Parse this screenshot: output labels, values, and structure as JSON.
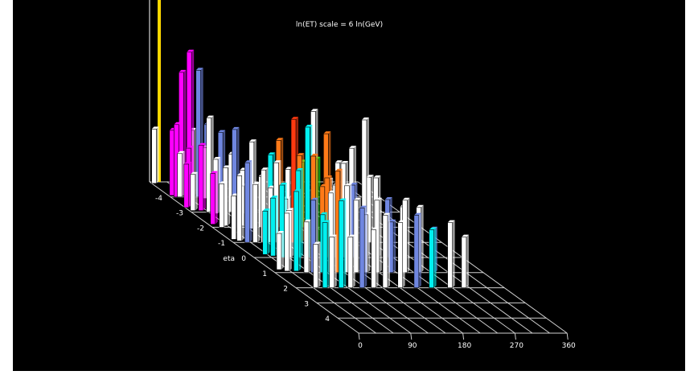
{
  "chart_data": {
    "type": "bar",
    "subtype": "3d-lego-histogram",
    "title": "ln(ET) scale = 6 ln(GeV)",
    "axes": {
      "eta": {
        "label": "eta",
        "ticks": [
          "-4",
          "-3",
          "-2",
          "-1",
          "0",
          "1",
          "2",
          "3",
          "4"
        ],
        "range": [
          -5,
          5
        ]
      },
      "phi": {
        "label": "",
        "ticks": [
          "0",
          "90",
          "180",
          "270",
          "360"
        ],
        "range": [
          0,
          360
        ]
      }
    },
    "grid": true,
    "series_colors": {
      "white": "#ffffff",
      "blue": "#6f86e0",
      "magenta": "#ff00ff",
      "cyan": "#00f0f0",
      "orange": "#ff7a18",
      "red": "#ff3a10",
      "green": "#22ee22"
    },
    "vertical_marker": {
      "color": "#ffd800",
      "eta": -5,
      "phi": 0,
      "height": 6
    },
    "towers": [
      {
        "eta": -4.9,
        "phi": 0,
        "h": 1.5,
        "color": "white"
      },
      {
        "eta": -4.1,
        "phi": 2,
        "h": 1.8,
        "color": "magenta"
      },
      {
        "eta": -4.0,
        "phi": 6,
        "h": 2.0,
        "color": "magenta"
      },
      {
        "eta": -4.0,
        "phi": 12,
        "h": 1.2,
        "color": "white"
      },
      {
        "eta": -4.1,
        "phi": 18,
        "h": 3.4,
        "color": "magenta"
      },
      {
        "eta": -4.0,
        "phi": 28,
        "h": 4.0,
        "color": "magenta"
      },
      {
        "eta": -4.1,
        "phi": 36,
        "h": 1.8,
        "color": "white"
      },
      {
        "eta": -4.0,
        "phi": 44,
        "h": 3.5,
        "color": "blue"
      },
      {
        "eta": -3.9,
        "phi": 52,
        "h": 1.4,
        "color": "white"
      },
      {
        "eta": -4.0,
        "phi": 58,
        "h": 2.0,
        "color": "blue"
      },
      {
        "eta": -3.3,
        "phi": -2,
        "h": 1.2,
        "color": "magenta"
      },
      {
        "eta": -3.4,
        "phi": 5,
        "h": 1.6,
        "color": "magenta"
      },
      {
        "eta": -3.1,
        "phi": 2,
        "h": 1.0,
        "color": "white"
      },
      {
        "eta": -3.1,
        "phi": 16,
        "h": 1.8,
        "color": "magenta"
      },
      {
        "eta": -3.0,
        "phi": 26,
        "h": 2.6,
        "color": "white"
      },
      {
        "eta": -2.9,
        "phi": 34,
        "h": 1.5,
        "color": "white"
      },
      {
        "eta": -3.0,
        "phi": 46,
        "h": 2.2,
        "color": "blue"
      },
      {
        "eta": -3.0,
        "phi": 64,
        "h": 1.6,
        "color": "white"
      },
      {
        "eta": -2.9,
        "phi": 80,
        "h": 1.2,
        "color": "white"
      },
      {
        "eta": -2.2,
        "phi": 4,
        "h": 1.4,
        "color": "magenta"
      },
      {
        "eta": -2.0,
        "phi": 12,
        "h": 1.2,
        "color": "white"
      },
      {
        "eta": -2.1,
        "phi": 22,
        "h": 1.6,
        "color": "white"
      },
      {
        "eta": -2.0,
        "phi": 34,
        "h": 2.7,
        "color": "blue"
      },
      {
        "eta": -2.1,
        "phi": 50,
        "h": 1.1,
        "color": "white"
      },
      {
        "eta": -1.9,
        "phi": 60,
        "h": 2.4,
        "color": "white"
      },
      {
        "eta": -2.0,
        "phi": 80,
        "h": 1.4,
        "color": "white"
      },
      {
        "eta": -2.0,
        "phi": 96,
        "h": 2.0,
        "color": "cyan"
      },
      {
        "eta": -2.0,
        "phi": 110,
        "h": 2.4,
        "color": "orange"
      },
      {
        "eta": -2.0,
        "phi": 126,
        "h": 1.6,
        "color": "white"
      },
      {
        "eta": -2.0,
        "phi": 150,
        "h": 1.8,
        "color": "green"
      },
      {
        "eta": -2.0,
        "phi": 170,
        "h": 3.2,
        "color": "white"
      },
      {
        "eta": -2.0,
        "phi": 196,
        "h": 1.3,
        "color": "white"
      },
      {
        "eta": -2.0,
        "phi": 216,
        "h": 1.0,
        "color": "blue"
      },
      {
        "eta": -1.2,
        "phi": 4,
        "h": 1.2,
        "color": "white"
      },
      {
        "eta": -1.1,
        "phi": 10,
        "h": 1.8,
        "color": "white"
      },
      {
        "eta": -1.0,
        "phi": 20,
        "h": 2.2,
        "color": "blue"
      },
      {
        "eta": -1.0,
        "phi": 34,
        "h": 1.6,
        "color": "white"
      },
      {
        "eta": -1.0,
        "phi": 48,
        "h": 2.0,
        "color": "white"
      },
      {
        "eta": -1.0,
        "phi": 60,
        "h": 1.5,
        "color": "white"
      },
      {
        "eta": -1.0,
        "phi": 70,
        "h": 2.2,
        "color": "white"
      },
      {
        "eta": -1.0,
        "phi": 86,
        "h": 1.2,
        "color": "white"
      },
      {
        "eta": -1.0,
        "phi": 100,
        "h": 3.4,
        "color": "red"
      },
      {
        "eta": -1.0,
        "phi": 110,
        "h": 2.4,
        "color": "orange"
      },
      {
        "eta": -1.0,
        "phi": 124,
        "h": 1.4,
        "color": "white"
      },
      {
        "eta": -1.0,
        "phi": 138,
        "h": 2.3,
        "color": "green"
      },
      {
        "eta": -1.0,
        "phi": 156,
        "h": 3.0,
        "color": "orange"
      },
      {
        "eta": -1.0,
        "phi": 176,
        "h": 2.2,
        "color": "white"
      },
      {
        "eta": -1.0,
        "phi": 200,
        "h": 2.6,
        "color": "white"
      },
      {
        "eta": -1.0,
        "phi": 230,
        "h": 1.8,
        "color": "white"
      },
      {
        "eta": -0.2,
        "phi": 22,
        "h": 1.2,
        "color": "cyan"
      },
      {
        "eta": -0.1,
        "phi": 32,
        "h": 1.6,
        "color": "cyan"
      },
      {
        "eta": 0.0,
        "phi": 44,
        "h": 2.0,
        "color": "cyan"
      },
      {
        "eta": 0.0,
        "phi": 56,
        "h": 1.3,
        "color": "white"
      },
      {
        "eta": 0.0,
        "phi": 72,
        "h": 2.4,
        "color": "cyan"
      },
      {
        "eta": 0.0,
        "phi": 88,
        "h": 3.6,
        "color": "cyan"
      },
      {
        "eta": 0.0,
        "phi": 98,
        "h": 2.8,
        "color": "orange"
      },
      {
        "eta": 0.1,
        "phi": 110,
        "h": 2.0,
        "color": "orange"
      },
      {
        "eta": 0.0,
        "phi": 122,
        "h": 2.2,
        "color": "orange"
      },
      {
        "eta": 0.0,
        "phi": 136,
        "h": 2.0,
        "color": "white"
      },
      {
        "eta": 0.0,
        "phi": 150,
        "h": 2.6,
        "color": "white"
      },
      {
        "eta": 0.0,
        "phi": 166,
        "h": 2.0,
        "color": "blue"
      },
      {
        "eta": 0.0,
        "phi": 186,
        "h": 3.8,
        "color": "white"
      },
      {
        "eta": 0.0,
        "phi": 206,
        "h": 2.2,
        "color": "white"
      },
      {
        "eta": 0.0,
        "phi": 226,
        "h": 1.6,
        "color": "blue"
      },
      {
        "eta": 0.0,
        "phi": 252,
        "h": 1.4,
        "color": "white"
      },
      {
        "eta": 0.8,
        "phi": 10,
        "h": 1.0,
        "color": "white"
      },
      {
        "eta": 0.9,
        "phi": 20,
        "h": 1.6,
        "color": "white"
      },
      {
        "eta": 0.9,
        "phi": 36,
        "h": 2.2,
        "color": "cyan"
      },
      {
        "eta": 1.0,
        "phi": 50,
        "h": 1.4,
        "color": "white"
      },
      {
        "eta": 1.0,
        "phi": 62,
        "h": 2.0,
        "color": "blue"
      },
      {
        "eta": 1.0,
        "phi": 78,
        "h": 1.6,
        "color": "cyan"
      },
      {
        "eta": 1.0,
        "phi": 92,
        "h": 2.2,
        "color": "white"
      },
      {
        "eta": 1.0,
        "phi": 104,
        "h": 2.8,
        "color": "orange"
      },
      {
        "eta": 1.0,
        "phi": 120,
        "h": 2.4,
        "color": "white"
      },
      {
        "eta": 1.0,
        "phi": 136,
        "h": 2.0,
        "color": "white"
      },
      {
        "eta": 1.0,
        "phi": 152,
        "h": 1.6,
        "color": "white"
      },
      {
        "eta": 1.0,
        "phi": 172,
        "h": 2.0,
        "color": "white"
      },
      {
        "eta": 1.0,
        "phi": 196,
        "h": 1.4,
        "color": "blue"
      },
      {
        "eta": 1.0,
        "phi": 220,
        "h": 2.0,
        "color": "white"
      },
      {
        "eta": 1.0,
        "phi": 244,
        "h": 1.8,
        "color": "white"
      },
      {
        "eta": 1.0,
        "phi": 268,
        "h": 1.2,
        "color": "blue"
      },
      {
        "eta": 2.0,
        "phi": 30,
        "h": 1.2,
        "color": "white"
      },
      {
        "eta": 2.0,
        "phi": 46,
        "h": 1.8,
        "color": "cyan"
      },
      {
        "eta": 2.0,
        "phi": 58,
        "h": 1.4,
        "color": "white"
      },
      {
        "eta": 2.0,
        "phi": 74,
        "h": 2.4,
        "color": "cyan"
      },
      {
        "eta": 2.0,
        "phi": 90,
        "h": 1.4,
        "color": "white"
      },
      {
        "eta": 2.0,
        "phi": 110,
        "h": 2.2,
        "color": "blue"
      },
      {
        "eta": 2.0,
        "phi": 130,
        "h": 1.6,
        "color": "white"
      },
      {
        "eta": 2.0,
        "phi": 150,
        "h": 2.0,
        "color": "white"
      },
      {
        "eta": 2.0,
        "phi": 176,
        "h": 1.8,
        "color": "white"
      },
      {
        "eta": 2.0,
        "phi": 204,
        "h": 2.0,
        "color": "blue"
      },
      {
        "eta": 2.0,
        "phi": 230,
        "h": 1.6,
        "color": "cyan"
      },
      {
        "eta": 2.0,
        "phi": 262,
        "h": 1.8,
        "color": "white"
      },
      {
        "eta": 2.0,
        "phi": 286,
        "h": 1.4,
        "color": "white"
      }
    ]
  }
}
